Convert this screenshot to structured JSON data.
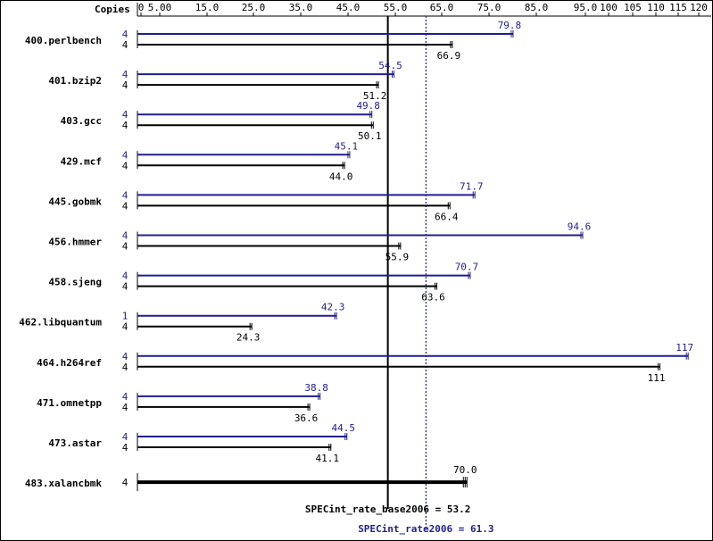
{
  "chart_data": {
    "type": "bar",
    "orientation": "horizontal",
    "copies_label": "Copies",
    "xlim": [
      0,
      120
    ],
    "x_ticks": [
      "0",
      "5.00",
      "15.0",
      "25.0",
      "35.0",
      "45.0",
      "55.0",
      "65.0",
      "75.0",
      "85.0",
      "95.0",
      "100",
      "105",
      "110",
      "115",
      "120"
    ],
    "categories": [
      "400.perlbench",
      "401.bzip2",
      "403.gcc",
      "429.mcf",
      "445.gobmk",
      "456.hmmer",
      "458.sjeng",
      "462.libquantum",
      "464.h264ref",
      "471.omnetpp",
      "473.astar",
      "483.xalancbmk"
    ],
    "series": [
      {
        "key": "peak",
        "color": "#1f1f8f",
        "copies": [
          "4",
          "4",
          "4",
          "4",
          "4",
          "4",
          "4",
          "1",
          "4",
          "4",
          "4",
          "4"
        ],
        "values": [
          79.8,
          54.5,
          49.8,
          45.1,
          71.7,
          94.6,
          70.7,
          42.3,
          117,
          38.8,
          44.5,
          70.0
        ],
        "labels": [
          "79.8",
          "54.5",
          "49.8",
          "45.1",
          "71.7",
          "94.6",
          "70.7",
          "42.3",
          "117",
          "38.8",
          "44.5",
          ""
        ]
      },
      {
        "key": "base",
        "color": "#000000",
        "copies": [
          "4",
          "4",
          "4",
          "4",
          "4",
          "4",
          "4",
          "4",
          "4",
          "4",
          "4",
          "4"
        ],
        "values": [
          66.9,
          51.2,
          50.1,
          44.0,
          66.4,
          55.9,
          63.6,
          24.3,
          111,
          36.6,
          41.1,
          70.0
        ],
        "labels": [
          "66.9",
          "51.2",
          "50.1",
          "44.0",
          "66.4",
          "55.9",
          "63.6",
          "24.3",
          "111",
          "36.6",
          "41.1",
          "70.0"
        ]
      }
    ],
    "reference_lines": [
      {
        "key": "base",
        "label": "SPECint_rate_base2006 = 53.2",
        "value": 53.2,
        "style": "solid",
        "color": "#000000"
      },
      {
        "key": "peak",
        "label": "SPECint_rate2006 = 61.3",
        "value": 61.3,
        "style": "dotted",
        "color": "#1f1f8f"
      }
    ]
  }
}
